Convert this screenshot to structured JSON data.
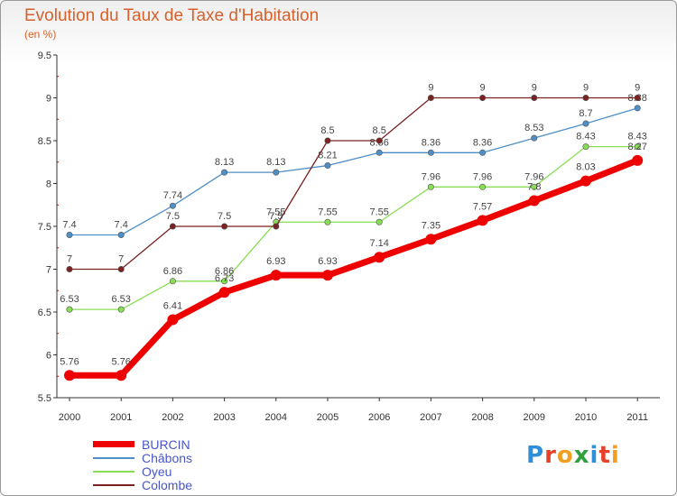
{
  "title": "Evolution du Taux de Taxe d'Habitation",
  "subtitle": "(en %)",
  "logo": {
    "text": "Proxiti",
    "colors": [
      "#2f8fd8",
      "#e8402a",
      "#f0a020",
      "#2f9f3f",
      "#2f8fd8",
      "#e8402a",
      "#f0a020"
    ]
  },
  "chart_data": {
    "type": "line",
    "title": "Evolution du Taux de Taxe d'Habitation",
    "ylabel": "(en %)",
    "xlabel": "",
    "x": [
      "2000",
      "2001",
      "2002",
      "2003",
      "2004",
      "2005",
      "2006",
      "2007",
      "2008",
      "2009",
      "2010",
      "2011"
    ],
    "ylim": [
      5.5,
      9.5
    ],
    "yticks": [
      "5.5",
      "6",
      "6.5",
      "7",
      "7.5",
      "8",
      "8.5",
      "9",
      "9.5"
    ],
    "grid": false,
    "legend_position": "bottom-left",
    "series": [
      {
        "name": "BURCIN",
        "color": "#ee0000",
        "width": 7,
        "marker": 6,
        "values": [
          5.76,
          5.76,
          6.41,
          6.73,
          6.93,
          6.93,
          7.14,
          7.35,
          7.57,
          7.8,
          8.03,
          8.27
        ],
        "labels": [
          "5.76",
          "5.76",
          "6.41",
          "6.73",
          "6.93",
          "6.93",
          "7.14",
          "7.35",
          "7.57",
          "7.8",
          "8.03",
          "8.27"
        ]
      },
      {
        "name": "Châbons",
        "color": "#4f8fc7",
        "width": 1.3,
        "marker": 3.2,
        "values": [
          7.4,
          7.4,
          7.74,
          8.13,
          8.13,
          8.21,
          8.36,
          8.36,
          8.36,
          8.53,
          8.7,
          8.88
        ],
        "labels": [
          "7.4",
          "7.4",
          "7.74",
          "8.13",
          "8.13",
          "8.21",
          "8.36",
          "8.36",
          "8.36",
          "8.53",
          "8.7",
          "8.88"
        ]
      },
      {
        "name": "Oyeu",
        "color": "#88dd55",
        "width": 1.3,
        "marker": 3.2,
        "values": [
          6.53,
          6.53,
          6.86,
          6.86,
          7.55,
          7.55,
          7.55,
          7.96,
          7.96,
          7.96,
          8.43,
          8.43
        ],
        "labels": [
          "6.53",
          "6.53",
          "6.86",
          "6.86",
          "7.55",
          "7.55",
          "7.55",
          "7.96",
          "7.96",
          "7.96",
          "8.43",
          "8.43"
        ]
      },
      {
        "name": "Colombe",
        "color": "#7a2222",
        "width": 1.3,
        "marker": 3.2,
        "values": [
          7,
          7,
          7.5,
          7.5,
          7.5,
          8.5,
          8.5,
          9,
          9,
          9,
          9,
          9
        ],
        "labels": [
          "7",
          "7",
          "7.5",
          "7.5",
          "7.5",
          "8.5",
          "8.5",
          "9",
          "9",
          "9",
          "9",
          "9"
        ]
      }
    ]
  }
}
